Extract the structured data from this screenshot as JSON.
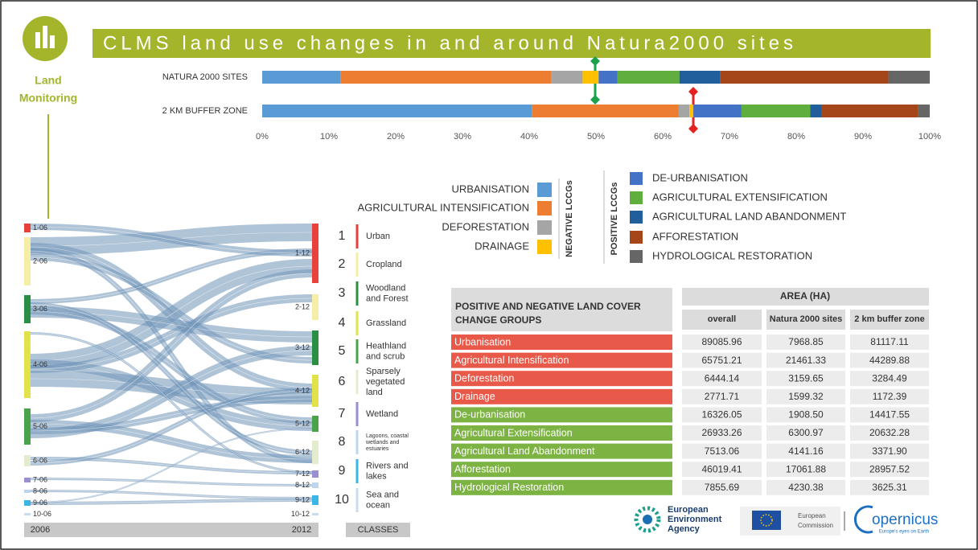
{
  "chart_data": {
    "type": "stacked-barh",
    "title": "CLMS land use changes in and around Natura2000 sites",
    "categories": [
      "NATURA 2000 SITES",
      "2 KM BUFFER ZONE"
    ],
    "xlim": [
      0,
      100
    ],
    "xticks": [
      {
        "value": 0,
        "label": "0%"
      },
      {
        "value": 10,
        "label": "10%"
      },
      {
        "value": 20,
        "label": "20%"
      },
      {
        "value": 30,
        "label": "30%"
      },
      {
        "value": 40,
        "label": "40%"
      },
      {
        "value": 50,
        "label": "50%"
      },
      {
        "value": 60,
        "label": "60%"
      },
      {
        "value": 70,
        "label": "70%"
      },
      {
        "value": 80,
        "label": "80%"
      },
      {
        "value": 90,
        "label": "90%"
      },
      {
        "value": 100,
        "label": "100%"
      }
    ],
    "legend_groups": [
      "NEGATIVE LCCGs",
      "POSITIVE LCCGs"
    ],
    "series": [
      {
        "name": "URBANISATION",
        "color": "#5b9bd5",
        "values": [
          11.7,
          40.4
        ]
      },
      {
        "name": "AGRICULTURAL INTENSIFICATION",
        "color": "#ed7d31",
        "values": [
          31.6,
          22.0
        ]
      },
      {
        "name": "DEFORESTATION",
        "color": "#a5a5a5",
        "values": [
          4.7,
          1.6
        ]
      },
      {
        "name": "DRAINAGE",
        "color": "#ffc000",
        "values": [
          2.4,
          0.6
        ]
      },
      {
        "name": "DE-URBANISATION",
        "color": "#4472c4",
        "values": [
          2.8,
          7.2
        ]
      },
      {
        "name": "AGRICULTURAL EXTENSIFICATION",
        "color": "#5fae3e",
        "values": [
          9.3,
          10.3
        ]
      },
      {
        "name": "AGRICULTURAL LAND ABANDONMENT",
        "color": "#215f9a",
        "values": [
          6.1,
          1.7
        ]
      },
      {
        "name": "AFFORESTATION",
        "color": "#a5461a",
        "values": [
          25.2,
          14.4
        ]
      },
      {
        "name": "HYDROLOGICAL RESTORATION",
        "color": "#666666",
        "values": [
          6.2,
          1.8
        ]
      }
    ]
  },
  "branding": {
    "logo_line1": "Land",
    "logo_line2": "Monitoring",
    "eea": [
      "European",
      "Environment",
      "Agency"
    ],
    "ec": [
      "European",
      "Commission"
    ],
    "copernicus": "opernicus",
    "copernicus_tag": "Europe's eyes on Earth"
  },
  "sankey": {
    "left": [
      "1-06",
      "2-06",
      "3-06",
      "4-06",
      "5-06",
      "6-06",
      "7-06",
      "8-06",
      "9-06",
      "10-06"
    ],
    "right": [
      "1-12",
      "2-12",
      "3-12",
      "4-12",
      "5-12",
      "6-12",
      "7-12",
      "8-12",
      "9-12",
      "10-12"
    ],
    "year_left": "2006",
    "year_right": "2012",
    "classes_label": "CLASSES"
  },
  "classes": [
    {
      "number": 1,
      "name": [
        "Urban"
      ],
      "color": "#e8413c"
    },
    {
      "number": 2,
      "name": [
        "Cropland"
      ],
      "color": "#f6eea6"
    },
    {
      "number": 3,
      "name": [
        "Woodland",
        "and Forest"
      ],
      "color": "#2a8f45"
    },
    {
      "number": 4,
      "name": [
        "Grassland"
      ],
      "color": "#e2e24a"
    },
    {
      "number": 5,
      "name": [
        "Heathland",
        "and scrub"
      ],
      "color": "#4aa34a"
    },
    {
      "number": 6,
      "name": [
        "Sparsely",
        "vegetated",
        "land"
      ],
      "color": "#e4ecd0"
    },
    {
      "number": 7,
      "name": [
        "Wetland"
      ],
      "color": "#9a8fd0"
    },
    {
      "number": 8,
      "name": [
        "Lagoons, coastal",
        "wetlands and",
        "estuaries"
      ],
      "color": "#bcd6ee"
    },
    {
      "number": 9,
      "name": [
        "Rivers and",
        "lakes"
      ],
      "color": "#3bb5e6"
    },
    {
      "number": 10,
      "name": [
        "Sea and",
        "ocean"
      ],
      "color": "#c8dcf0"
    }
  ],
  "table": {
    "title": [
      "POSITIVE AND NEGATIVE LAND COVER",
      "CHANGE GROUPS"
    ],
    "area_header": "AREA (HA)",
    "columns": [
      "overall",
      "Natura 2000 sites",
      "2 km buffer zone"
    ],
    "rows": [
      {
        "name": "Urbanisation",
        "color": "#e8594a",
        "values": [
          "89085.96",
          "7968.85",
          "81117.11"
        ]
      },
      {
        "name": "Agricultural Intensification",
        "color": "#e8594a",
        "values": [
          "65751.21",
          "21461.33",
          "44289.88"
        ]
      },
      {
        "name": "Deforestation",
        "color": "#e8594a",
        "values": [
          "6444.14",
          "3159.65",
          "3284.49"
        ]
      },
      {
        "name": "Drainage",
        "color": "#e8594a",
        "values": [
          "2771.71",
          "1599.32",
          "1172.39"
        ]
      },
      {
        "name": "De-urbanisation",
        "color": "#7cb342",
        "values": [
          "16326.05",
          "1908.50",
          "14417.55"
        ]
      },
      {
        "name": "Agricultural Extensification",
        "color": "#7cb342",
        "values": [
          "26933.26",
          "6300.97",
          "20632.28"
        ]
      },
      {
        "name": "Agricultural Land Abandonment",
        "color": "#7cb342",
        "values": [
          "7513.06",
          "4141.16",
          "3371.90"
        ]
      },
      {
        "name": "Afforestation",
        "color": "#7cb342",
        "values": [
          "46019.41",
          "17061.88",
          "28957.52"
        ]
      },
      {
        "name": "Hydrological Restoration",
        "color": "#7cb342",
        "values": [
          "7855.69",
          "4230.38",
          "3625.31"
        ]
      }
    ]
  }
}
